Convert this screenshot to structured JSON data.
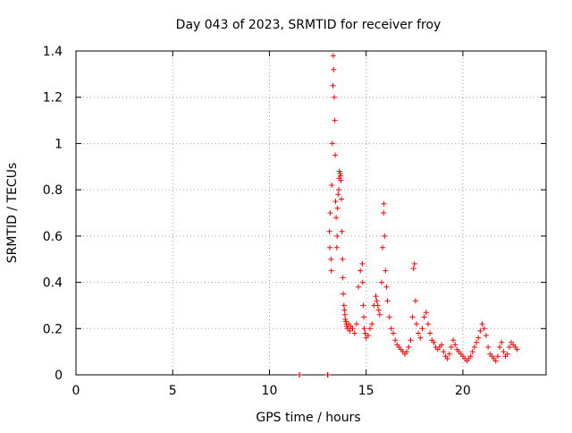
{
  "colors": {
    "series": "#ff0000",
    "grid": "#a0a0a0",
    "axis": "#000000",
    "background": "#ffffff"
  },
  "chart_data": {
    "type": "scatter",
    "title": "Day 043 of 2023, SRMTID for receiver froy",
    "xlabel": "GPS time / hours",
    "ylabel": "SRMTID / TECUs",
    "xlim": [
      0,
      24.3
    ],
    "ylim": [
      0,
      1.4
    ],
    "x_ticks": [
      0,
      5,
      10,
      15,
      20
    ],
    "x_tick_labels": [
      "0",
      "5",
      "10",
      "15",
      "20"
    ],
    "y_ticks": [
      0,
      0.2,
      0.4,
      0.6,
      0.8,
      1.0,
      1.2,
      1.4
    ],
    "y_tick_labels": [
      "0",
      "0.2",
      "0.4",
      "0.6",
      "0.8",
      "1",
      "1.2",
      "1.4"
    ],
    "grid": true,
    "marker": "plus",
    "series": [
      {
        "name": "SRMTID",
        "x": [
          11.55,
          11.56,
          13.0,
          13.02,
          13.1,
          13.12,
          13.15,
          13.18,
          13.2,
          13.22,
          13.25,
          13.28,
          13.3,
          13.32,
          13.35,
          13.38,
          13.4,
          13.42,
          13.45,
          13.48,
          13.5,
          13.52,
          13.55,
          13.58,
          13.6,
          13.62,
          13.65,
          13.68,
          13.7,
          13.72,
          13.75,
          13.78,
          13.8,
          13.82,
          13.85,
          13.88,
          13.9,
          13.92,
          13.95,
          13.98,
          14.0,
          14.05,
          14.1,
          14.15,
          14.2,
          14.3,
          14.4,
          14.5,
          14.6,
          14.7,
          14.8,
          14.82,
          14.85,
          14.88,
          14.9,
          14.95,
          15.0,
          15.1,
          15.2,
          15.3,
          15.4,
          15.5,
          15.55,
          15.6,
          15.65,
          15.7,
          15.8,
          15.85,
          15.9,
          15.92,
          15.95,
          16.0,
          16.05,
          16.1,
          16.2,
          16.3,
          16.4,
          16.5,
          16.6,
          16.7,
          16.8,
          16.9,
          17.0,
          17.1,
          17.2,
          17.3,
          17.4,
          17.45,
          17.5,
          17.55,
          17.6,
          17.7,
          17.8,
          17.9,
          18.0,
          18.1,
          18.2,
          18.3,
          18.4,
          18.5,
          18.6,
          18.7,
          18.8,
          18.9,
          19.0,
          19.1,
          19.2,
          19.3,
          19.4,
          19.5,
          19.6,
          19.7,
          19.8,
          19.9,
          20.0,
          20.1,
          20.2,
          20.3,
          20.4,
          20.5,
          20.6,
          20.7,
          20.8,
          20.9,
          21.0,
          21.1,
          21.2,
          21.3,
          21.4,
          21.5,
          21.6,
          21.7,
          21.8,
          21.9,
          22.0,
          22.1,
          22.2,
          22.3,
          22.4,
          22.5,
          22.6,
          22.7,
          22.8
        ],
        "y": [
          0.0,
          0.0,
          0.0,
          0.0,
          0.62,
          0.55,
          0.7,
          0.5,
          0.45,
          0.82,
          1.0,
          1.25,
          1.38,
          1.32,
          1.2,
          1.1,
          0.95,
          0.75,
          0.68,
          0.55,
          0.6,
          0.72,
          0.78,
          0.8,
          0.85,
          0.88,
          0.87,
          0.86,
          0.84,
          0.76,
          0.62,
          0.5,
          0.42,
          0.35,
          0.3,
          0.28,
          0.26,
          0.24,
          0.23,
          0.22,
          0.21,
          0.2,
          0.22,
          0.19,
          0.21,
          0.2,
          0.18,
          0.22,
          0.38,
          0.45,
          0.48,
          0.4,
          0.3,
          0.25,
          0.2,
          0.18,
          0.16,
          0.17,
          0.2,
          0.22,
          0.3,
          0.34,
          0.32,
          0.3,
          0.28,
          0.26,
          0.4,
          0.55,
          0.7,
          0.74,
          0.6,
          0.45,
          0.38,
          0.32,
          0.25,
          0.2,
          0.18,
          0.15,
          0.13,
          0.12,
          0.11,
          0.1,
          0.09,
          0.1,
          0.12,
          0.15,
          0.25,
          0.46,
          0.48,
          0.32,
          0.22,
          0.18,
          0.16,
          0.2,
          0.25,
          0.27,
          0.22,
          0.18,
          0.15,
          0.14,
          0.12,
          0.11,
          0.12,
          0.13,
          0.1,
          0.08,
          0.07,
          0.09,
          0.12,
          0.15,
          0.13,
          0.11,
          0.1,
          0.09,
          0.08,
          0.07,
          0.06,
          0.07,
          0.08,
          0.1,
          0.12,
          0.14,
          0.16,
          0.19,
          0.22,
          0.2,
          0.17,
          0.12,
          0.09,
          0.08,
          0.07,
          0.06,
          0.08,
          0.12,
          0.14,
          0.1,
          0.08,
          0.09,
          0.12,
          0.14,
          0.13,
          0.12,
          0.11
        ]
      }
    ]
  }
}
